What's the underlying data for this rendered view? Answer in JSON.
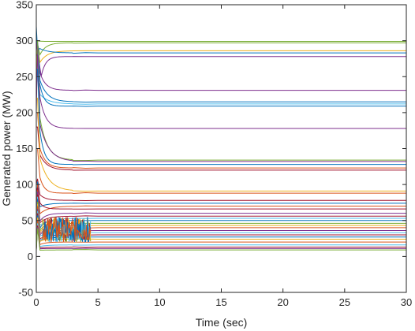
{
  "chart_data": {
    "type": "line",
    "title": "",
    "xlabel": "Time (sec)",
    "ylabel": "Generated power (MW)",
    "xlim": [
      0,
      30
    ],
    "ylim": [
      -50,
      350
    ],
    "xticks": [
      0,
      5,
      10,
      15,
      20,
      25,
      30
    ],
    "yticks": [
      -50,
      0,
      50,
      100,
      150,
      200,
      250,
      300,
      350
    ],
    "grid": false,
    "legend": "none",
    "series": [
      {
        "final": 299,
        "start": 300,
        "peak_t": 0.25,
        "color": "#77ac30"
      },
      {
        "final": 297,
        "start": 250,
        "peak_t": 0.3,
        "color": "#77ac30"
      },
      {
        "final": 286,
        "start": 240,
        "peak_t": 0.3,
        "color": "#edb120"
      },
      {
        "final": 283,
        "start": 300,
        "peak_t": 0.3,
        "color": "#0072bd"
      },
      {
        "final": 278,
        "start": 200,
        "peak_t": 0.4,
        "color": "#7e2f8e"
      },
      {
        "final": 231,
        "start": 300,
        "peak_t": 0.3,
        "color": "#7e2f8e"
      },
      {
        "final": 215,
        "start": 300,
        "peak_t": 0.3,
        "color": "#0072bd"
      },
      {
        "final": 212,
        "start": 250,
        "peak_t": 0.3,
        "color": "#4dbeee"
      },
      {
        "final": 209,
        "start": 320,
        "peak_t": 0.2,
        "color": "#0072bd"
      },
      {
        "final": 178,
        "start": 300,
        "peak_t": 0.3,
        "color": "#7e2f8e"
      },
      {
        "final": 134,
        "start": 300,
        "peak_t": 0.3,
        "color": "#77ac30"
      },
      {
        "final": 132,
        "start": 280,
        "peak_t": 0.3,
        "color": "#7e2f8e"
      },
      {
        "final": 128,
        "start": 260,
        "peak_t": 0.3,
        "color": "#0072bd"
      },
      {
        "final": 123,
        "start": 200,
        "peak_t": 0.3,
        "color": "#d95319"
      },
      {
        "final": 120,
        "start": 180,
        "peak_t": 0.3,
        "color": "#a2142f"
      },
      {
        "final": 91,
        "start": 220,
        "peak_t": 0.3,
        "color": "#edb120"
      },
      {
        "final": 88,
        "start": 150,
        "peak_t": 0.3,
        "color": "#d95319"
      },
      {
        "final": 78,
        "start": 100,
        "peak_t": 0.3,
        "color": "#a2142f"
      },
      {
        "final": 74,
        "start": 60,
        "peak_t": 0.3,
        "color": "#0072bd"
      },
      {
        "final": 70,
        "start": 40,
        "peak_t": 0.3,
        "color": "#d95319"
      },
      {
        "final": 66,
        "start": 90,
        "peak_t": 0.3,
        "color": "#a2142f"
      },
      {
        "final": 60,
        "start": 30,
        "peak_t": 0.3,
        "color": "#7e2f8e"
      },
      {
        "final": 56,
        "start": 30,
        "peak_t": 0.3,
        "color": "#a2142f"
      },
      {
        "final": 53,
        "start": 25,
        "peak_t": 0.3,
        "color": "#4dbeee"
      },
      {
        "final": 50,
        "start": 20,
        "peak_t": 0.3,
        "color": "#0072bd"
      },
      {
        "final": 46,
        "start": 20,
        "peak_t": 0.3,
        "color": "#77ac30"
      },
      {
        "final": 43,
        "start": 20,
        "peak_t": 0.3,
        "color": "#edb120"
      },
      {
        "final": 40,
        "start": 20,
        "peak_t": 0.3,
        "color": "#d95319"
      },
      {
        "final": 36,
        "start": 20,
        "peak_t": 0.3,
        "color": "#7e2f8e"
      },
      {
        "final": 33,
        "start": 20,
        "peak_t": 0.3,
        "color": "#4dbeee"
      },
      {
        "final": 30,
        "start": 15,
        "peak_t": 0.3,
        "color": "#a2142f"
      },
      {
        "final": 27,
        "start": 15,
        "peak_t": 0.3,
        "color": "#0072bd"
      },
      {
        "final": 24,
        "start": 15,
        "peak_t": 0.3,
        "color": "#edb120"
      },
      {
        "final": 20,
        "start": 10,
        "peak_t": 0.3,
        "color": "#d95319"
      },
      {
        "final": 16,
        "start": 10,
        "peak_t": 0.3,
        "color": "#4dbeee"
      },
      {
        "final": 13,
        "start": 10,
        "peak_t": 0.3,
        "color": "#a2142f"
      },
      {
        "final": 11,
        "start": 10,
        "peak_t": 0.3,
        "color": "#7e2f8e"
      },
      {
        "final": 9,
        "start": 8,
        "peak_t": 0.3,
        "color": "#77ac30"
      }
    ],
    "oscillation": {
      "t_start": 0.5,
      "t_end": 4.4,
      "y_min": 20,
      "y_max": 55,
      "colors": [
        "#77ac30",
        "#a2142f",
        "#edb120",
        "#4dbeee",
        "#0072bd",
        "#d95319"
      ]
    }
  }
}
